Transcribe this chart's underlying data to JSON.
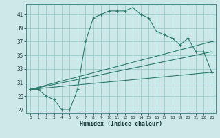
{
  "xlabel": "Humidex (Indice chaleur)",
  "bg_color": "#cce8e8",
  "grid_color": "#99cccc",
  "line_color": "#2d7a6e",
  "xlim": [
    -0.5,
    23.5
  ],
  "ylim": [
    26.5,
    42.5
  ],
  "xticks": [
    0,
    1,
    2,
    3,
    4,
    5,
    6,
    7,
    8,
    9,
    10,
    11,
    12,
    13,
    14,
    15,
    16,
    17,
    18,
    19,
    20,
    21,
    22,
    23
  ],
  "yticks": [
    27,
    29,
    31,
    33,
    35,
    37,
    39,
    41
  ],
  "series1_x": [
    0,
    1,
    2,
    3,
    4,
    5,
    6,
    7,
    8,
    9,
    10,
    11,
    12,
    13,
    14,
    15,
    16,
    17,
    18,
    19,
    20,
    21,
    22,
    23
  ],
  "series1_y": [
    30.0,
    30.0,
    29.0,
    28.5,
    27.0,
    27.0,
    30.0,
    37.0,
    40.5,
    41.0,
    41.5,
    41.5,
    41.5,
    42.0,
    41.0,
    40.5,
    38.5,
    38.0,
    37.5,
    36.5,
    37.5,
    35.5,
    35.5,
    32.5
  ],
  "series2_x": [
    0,
    23
  ],
  "series2_y": [
    30.0,
    32.5
  ],
  "series3_x": [
    0,
    23
  ],
  "series3_y": [
    30.0,
    35.5
  ],
  "series4_x": [
    0,
    23
  ],
  "series4_y": [
    30.0,
    37.0
  ]
}
